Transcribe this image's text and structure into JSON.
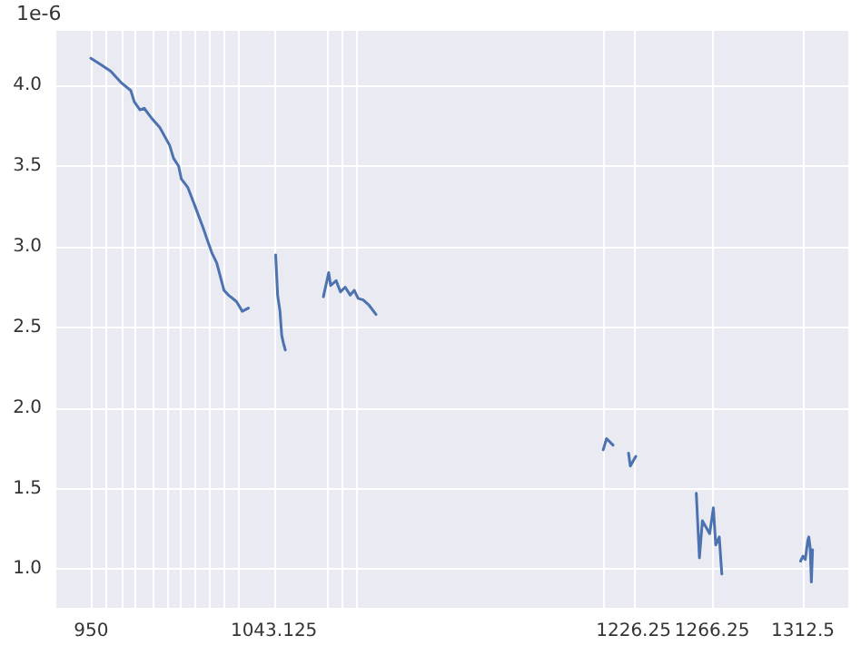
{
  "chart_data": {
    "type": "line",
    "ylabel": "1e-6",
    "x": [
      949.9,
      955,
      960,
      965.2,
      970.2,
      972,
      974.9,
      977,
      980.7,
      985,
      990.0,
      992,
      994.6,
      996,
      999.2,
      1003,
      1007.0,
      1009,
      1011.6,
      1014,
      1017.7,
      1020,
      1024.1,
      1027,
      1030.1,
      null,
      1044.0,
      1045,
      1046.2,
      1047.1,
      1048,
      1048.9,
      null,
      1068.3,
      1071.0,
      1072,
      1074.8,
      1077,
      1079.4,
      1082,
      1084.0,
      1086,
      1088.6,
      1091.4,
      1095.1,
      null,
      1210.8,
      1212.5,
      1215.8,
      null,
      1223.7,
      1224.6,
      1227.4,
      null,
      1258.2,
      1259.8,
      1261.3,
      1265.0,
      1266.9,
      1268.1,
      1269.9,
      1271.2,
      null,
      1311.3,
      1312.5,
      1313.7,
      1315.0,
      1315.5,
      1316.2,
      1316.8,
      1317.4
    ],
    "series": [
      {
        "color": "#4c72b0",
        "values": [
          4.17,
          4.13,
          4.09,
          4.02,
          3.97,
          3.9,
          3.85,
          3.86,
          3.8,
          3.74,
          3.63,
          3.55,
          3.5,
          3.42,
          3.37,
          3.25,
          3.12,
          3.05,
          2.96,
          2.9,
          2.73,
          2.7,
          2.66,
          2.6,
          2.62,
          null,
          2.95,
          2.7,
          2.6,
          2.45,
          2.4,
          2.36,
          null,
          2.69,
          2.84,
          2.76,
          2.79,
          2.72,
          2.75,
          2.7,
          2.73,
          2.68,
          2.67,
          2.64,
          2.58,
          null,
          1.74,
          1.81,
          1.77,
          null,
          1.72,
          1.64,
          1.7,
          null,
          1.47,
          1.07,
          1.3,
          1.22,
          1.38,
          1.15,
          1.2,
          0.97,
          null,
          1.05,
          1.08,
          1.06,
          1.18,
          1.2,
          1.13,
          0.92,
          1.12
        ]
      }
    ],
    "xlim": [
      932.3,
      1335.6
    ],
    "ylim": [
      0.76,
      4.34
    ],
    "xticks": [
      {
        "value": 950,
        "label": "950"
      },
      {
        "value": 957.5,
        "label": null
      },
      {
        "value": 966.25,
        "label": null
      },
      {
        "value": 972.5,
        "label": null
      },
      {
        "value": 981.25,
        "label": null
      },
      {
        "value": 988.75,
        "label": null
      },
      {
        "value": 995,
        "label": null
      },
      {
        "value": 1002.5,
        "label": null
      },
      {
        "value": 1010,
        "label": null
      },
      {
        "value": 1017.5,
        "label": null
      },
      {
        "value": 1025,
        "label": null
      },
      {
        "value": 1043.125,
        "label": "1043.125"
      },
      {
        "value": 1070,
        "label": null
      },
      {
        "value": 1077.5,
        "label": null
      },
      {
        "value": 1085,
        "label": null
      },
      {
        "value": 1211.25,
        "label": null
      },
      {
        "value": 1226.25,
        "label": "1226.25"
      },
      {
        "value": 1266.25,
        "label": "1266.25"
      },
      {
        "value": 1312.5,
        "label": "1312.5"
      }
    ],
    "yticks": [
      {
        "value": 1,
        "label": "1.0"
      },
      {
        "value": 1.5,
        "label": "1.5"
      },
      {
        "value": 2,
        "label": "2.0"
      },
      {
        "value": 2.5,
        "label": "2.5"
      },
      {
        "value": 3,
        "label": "3.0"
      },
      {
        "value": 3.5,
        "label": "3.5"
      },
      {
        "value": 4,
        "label": "4.0"
      }
    ],
    "grid": true,
    "marker": "none",
    "line_style": "solid"
  }
}
